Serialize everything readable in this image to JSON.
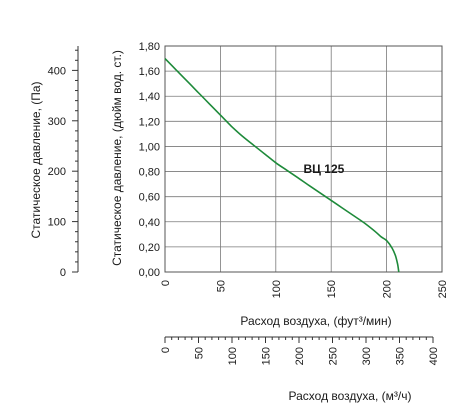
{
  "chart_data": {
    "type": "line",
    "title": "",
    "y_left_label": "Статическое давление, (Па)",
    "y_left_ticks": [
      0,
      100,
      200,
      300,
      400
    ],
    "ylabel": "Статическое давление, (дюйм вод. ст.)",
    "ylim": [
      0,
      1.8
    ],
    "y_ticks": [
      "0,00",
      "0,20",
      "0,40",
      "0,60",
      "0,80",
      "1,00",
      "1,20",
      "1,40",
      "1,60",
      "1,80"
    ],
    "xlabel": "Расход воздуха, (фут³/мин)",
    "xlim": [
      0,
      250
    ],
    "x_ticks": [
      0,
      50,
      100,
      150,
      200,
      250
    ],
    "x2_label": "Расход воздуха, (м³/ч)",
    "x2_ticks": [
      0,
      50,
      100,
      150,
      200,
      250,
      300,
      350,
      400
    ],
    "grid": true,
    "line_color": "#1e8a3a",
    "series": [
      {
        "name": "ВЦ 125",
        "x": [
          0,
          10,
          20,
          30,
          40,
          50,
          60,
          70,
          80,
          90,
          100,
          110,
          120,
          130,
          140,
          150,
          160,
          170,
          180,
          190,
          195,
          200,
          205,
          208,
          210,
          211
        ],
        "y": [
          1.7,
          1.61,
          1.52,
          1.43,
          1.34,
          1.25,
          1.16,
          1.08,
          1.01,
          0.94,
          0.87,
          0.81,
          0.75,
          0.69,
          0.63,
          0.57,
          0.51,
          0.45,
          0.39,
          0.32,
          0.28,
          0.25,
          0.19,
          0.13,
          0.06,
          0.0
        ]
      }
    ]
  }
}
